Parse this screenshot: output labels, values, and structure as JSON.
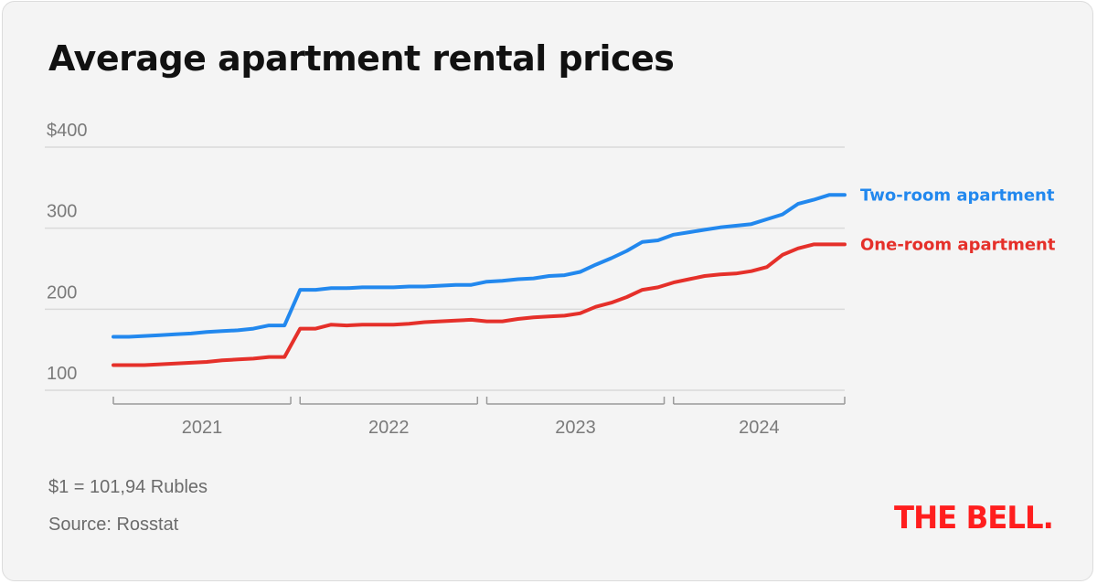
{
  "title": "Average apartment rental prices",
  "note_exchange": "$1 = 101,94 Rubles",
  "note_source": "Source: Rosstat",
  "logo_text": "THE BELL.",
  "colors": {
    "two_room": "#2288ee",
    "one_room": "#e5302a",
    "logo": "#ff1e1e"
  },
  "chart_data": {
    "type": "line",
    "title": "Average apartment rental prices",
    "xlabel": "",
    "ylabel": "",
    "ylim": [
      100,
      400
    ],
    "y_ticks": [
      {
        "value": 400,
        "label": "$400"
      },
      {
        "value": 300,
        "label": "300"
      },
      {
        "value": 200,
        "label": "200"
      },
      {
        "value": 100,
        "label": "100"
      }
    ],
    "x_groups": [
      "2021",
      "2022",
      "2023",
      "2024"
    ],
    "grid": true,
    "legend": "right (direct line labels)",
    "x": [
      "2021-01",
      "2021-02",
      "2021-03",
      "2021-04",
      "2021-05",
      "2021-06",
      "2021-07",
      "2021-08",
      "2021-09",
      "2021-10",
      "2021-11",
      "2021-12",
      "2022-01",
      "2022-02",
      "2022-03",
      "2022-04",
      "2022-05",
      "2022-06",
      "2022-07",
      "2022-08",
      "2022-09",
      "2022-10",
      "2022-11",
      "2022-12",
      "2023-01",
      "2023-02",
      "2023-03",
      "2023-04",
      "2023-05",
      "2023-06",
      "2023-07",
      "2023-08",
      "2023-09",
      "2023-10",
      "2023-11",
      "2023-12",
      "2024-01",
      "2024-02",
      "2024-03",
      "2024-04",
      "2024-05",
      "2024-06",
      "2024-07",
      "2024-08",
      "2024-09",
      "2024-10",
      "2024-11",
      "2024-12"
    ],
    "series": [
      {
        "name": "Two-room apartment",
        "values": [
          166,
          166,
          167,
          168,
          169,
          170,
          172,
          173,
          174,
          176,
          180,
          180,
          224,
          224,
          226,
          226,
          227,
          227,
          227,
          228,
          228,
          229,
          230,
          230,
          234,
          235,
          237,
          238,
          241,
          242,
          246,
          255,
          263,
          272,
          283,
          285,
          292,
          295,
          298,
          301,
          303,
          305,
          311,
          317,
          330,
          335,
          341,
          341
        ]
      },
      {
        "name": "One-room apartment",
        "values": [
          131,
          131,
          131,
          132,
          133,
          134,
          135,
          137,
          138,
          139,
          141,
          141,
          176,
          176,
          181,
          180,
          181,
          181,
          181,
          182,
          184,
          185,
          186,
          187,
          185,
          185,
          188,
          190,
          191,
          192,
          195,
          203,
          208,
          215,
          224,
          227,
          233,
          237,
          241,
          243,
          244,
          247,
          252,
          267,
          275,
          280,
          280,
          280
        ]
      }
    ]
  }
}
